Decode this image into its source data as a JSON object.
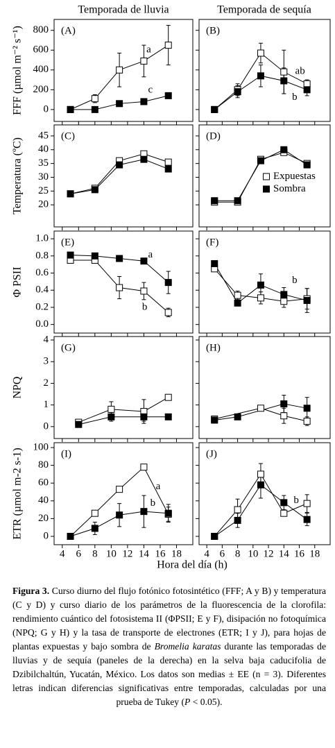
{
  "column_titles": [
    "Temporada de lluvia",
    "Temporada de sequía"
  ],
  "xlabel": "Hora del día (h)",
  "chart_data": [
    {
      "type": "line",
      "title": "(A)",
      "ylabel": "FFF (µmol m⁻² s⁻¹)",
      "xlim": [
        3,
        20
      ],
      "xticks": [
        4,
        6,
        8,
        10,
        12,
        14,
        16,
        18
      ],
      "ylim": [
        -120,
        910
      ],
      "yticks": [
        0,
        200,
        400,
        600,
        800
      ],
      "show_ytick_labels": true,
      "show_xtick_labels": false,
      "legend": false,
      "series": [
        {
          "name": "Expuestas",
          "color": "#000000",
          "marker": "open-square",
          "x": [
            5,
            8,
            11,
            14,
            17
          ],
          "values": [
            0,
            110,
            400,
            490,
            650
          ],
          "errors": [
            0,
            40,
            170,
            160,
            200
          ]
        },
        {
          "name": "Sombra",
          "color": "#000000",
          "marker": "filled-square",
          "x": [
            5,
            8,
            11,
            14,
            17
          ],
          "values": [
            0,
            0,
            60,
            80,
            140
          ],
          "errors": [
            0,
            0,
            10,
            10,
            15
          ]
        }
      ],
      "annotations": [
        {
          "text": "a",
          "x": 14.6,
          "y": 602
        },
        {
          "text": "c",
          "x": 14.8,
          "y": 195
        }
      ]
    },
    {
      "type": "line",
      "title": "(B)",
      "xlim": [
        3,
        20
      ],
      "xticks": [
        4,
        6,
        8,
        10,
        12,
        14,
        16,
        18
      ],
      "ylim": [
        -120,
        910
      ],
      "yticks": [
        0,
        200,
        400,
        600,
        800
      ],
      "show_ytick_labels": false,
      "show_xtick_labels": false,
      "legend": false,
      "series": [
        {
          "name": "Expuestas",
          "color": "#000000",
          "marker": "open-square",
          "x": [
            5,
            8,
            11,
            14,
            17
          ],
          "values": [
            0,
            200,
            570,
            380,
            260
          ],
          "errors": [
            0,
            60,
            100,
            220,
            40
          ]
        },
        {
          "name": "Sombra",
          "color": "#000000",
          "marker": "filled-square",
          "x": [
            5,
            8,
            11,
            14,
            17
          ],
          "values": [
            0,
            180,
            340,
            290,
            200
          ],
          "errors": [
            0,
            60,
            110,
            130,
            60
          ]
        }
      ],
      "annotations": [
        {
          "text": "ab",
          "x": 16.1,
          "y": 385
        },
        {
          "text": "b",
          "x": 15.4,
          "y": 120
        }
      ]
    },
    {
      "type": "line",
      "title": "(C)",
      "ylabel": "Temperatura (ºC)",
      "xlim": [
        3,
        20
      ],
      "xticks": [
        4,
        6,
        8,
        10,
        12,
        14,
        16,
        18
      ],
      "ylim": [
        12,
        49
      ],
      "yticks": [
        20,
        25,
        30,
        35,
        40,
        45
      ],
      "show_ytick_labels": true,
      "show_xtick_labels": false,
      "legend": false,
      "series": [
        {
          "name": "Expuestas",
          "color": "#000000",
          "marker": "open-square",
          "x": [
            5,
            8,
            11,
            14,
            17
          ],
          "values": [
            24,
            26,
            36,
            38.5,
            35.5
          ],
          "errors": [
            0.3,
            0.3,
            0.5,
            0.5,
            0.5
          ]
        },
        {
          "name": "Sombra",
          "color": "#000000",
          "marker": "filled-square",
          "x": [
            5,
            8,
            11,
            14,
            17
          ],
          "values": [
            24,
            25.5,
            34.5,
            36.5,
            33
          ],
          "errors": [
            0.3,
            0.3,
            0.5,
            0.5,
            0.5
          ]
        }
      ],
      "annotations": []
    },
    {
      "type": "line",
      "title": "(D)",
      "xlim": [
        3,
        20
      ],
      "xticks": [
        4,
        6,
        8,
        10,
        12,
        14,
        16,
        18
      ],
      "ylim": [
        12,
        49
      ],
      "yticks": [
        20,
        25,
        30,
        35,
        40,
        45
      ],
      "show_ytick_labels": false,
      "show_xtick_labels": false,
      "legend": "center right",
      "series": [
        {
          "name": "Expuestas",
          "color": "#000000",
          "marker": "open-square",
          "x": [
            5,
            8,
            11,
            14,
            17
          ],
          "values": [
            21,
            21,
            36.5,
            39,
            35
          ],
          "errors": [
            0.3,
            0.3,
            0.5,
            0.5,
            0.5
          ]
        },
        {
          "name": "Sombra",
          "color": "#000000",
          "marker": "filled-square",
          "x": [
            5,
            8,
            11,
            14,
            17
          ],
          "values": [
            21.5,
            21.5,
            36,
            40,
            34.5
          ],
          "errors": [
            0.3,
            0.3,
            0.5,
            0.5,
            0.5
          ]
        }
      ],
      "annotations": []
    },
    {
      "type": "line",
      "title": "(E)",
      "ylabel": "Φ PSII",
      "xlim": [
        3,
        20
      ],
      "xticks": [
        4,
        6,
        8,
        10,
        12,
        14,
        16,
        18
      ],
      "ylim": [
        -0.1,
        1.09
      ],
      "yticks": [
        {
          "value": 0,
          "label": "0.0"
        },
        0.2,
        0.4,
        0.6,
        0.8,
        {
          "value": 1,
          "label": "1.0"
        }
      ],
      "show_ytick_labels": true,
      "show_xtick_labels": false,
      "legend": false,
      "series": [
        {
          "name": "Expuestas",
          "color": "#000000",
          "marker": "open-square",
          "x": [
            5,
            8,
            11,
            14,
            17
          ],
          "values": [
            0.75,
            0.75,
            0.43,
            0.39,
            0.14
          ],
          "errors": [
            0.03,
            0.03,
            0.13,
            0.1,
            0.05
          ]
        },
        {
          "name": "Sombra",
          "color": "#000000",
          "marker": "filled-square",
          "x": [
            5,
            8,
            11,
            14,
            17
          ],
          "values": [
            0.81,
            0.8,
            0.77,
            0.74,
            0.49
          ],
          "errors": [
            0.03,
            0.03,
            0.02,
            0.03,
            0.13
          ]
        }
      ],
      "annotations": [
        {
          "text": "a",
          "x": 14.8,
          "y": 0.81
        },
        {
          "text": "b",
          "x": 14.1,
          "y": 0.2
        }
      ]
    },
    {
      "type": "line",
      "title": "(F)",
      "xlim": [
        3,
        20
      ],
      "xticks": [
        4,
        6,
        8,
        10,
        12,
        14,
        16,
        18
      ],
      "ylim": [
        -0.1,
        1.09
      ],
      "yticks": [
        0,
        0.2,
        0.4,
        0.6,
        0.8,
        1
      ],
      "show_ytick_labels": false,
      "show_xtick_labels": false,
      "legend": false,
      "series": [
        {
          "name": "Expuestas",
          "color": "#000000",
          "marker": "open-square",
          "x": [
            5,
            8,
            11,
            14,
            17
          ],
          "values": [
            0.65,
            0.34,
            0.31,
            0.27,
            0.3
          ],
          "errors": [
            0.03,
            0.05,
            0.07,
            0.07,
            0.12
          ]
        },
        {
          "name": "Sombra",
          "color": "#000000",
          "marker": "filled-square",
          "x": [
            5,
            8,
            11,
            14,
            17
          ],
          "values": [
            0.71,
            0.25,
            0.46,
            0.35,
            0.28
          ],
          "errors": [
            0.03,
            0.03,
            0.13,
            0.08,
            0.14
          ]
        }
      ],
      "annotations": [
        {
          "text": "b",
          "x": 15.4,
          "y": 0.51
        }
      ]
    },
    {
      "type": "line",
      "title": "(G)",
      "ylabel": "NPQ",
      "xlim": [
        3,
        20
      ],
      "xticks": [
        4,
        6,
        8,
        10,
        12,
        14,
        16,
        18
      ],
      "ylim": [
        -0.55,
        4.16
      ],
      "yticks": [
        0,
        1,
        2,
        3,
        4
      ],
      "show_ytick_labels": true,
      "show_xtick_labels": false,
      "legend": false,
      "series": [
        {
          "name": "Expuestas",
          "color": "#000000",
          "marker": "open-square",
          "x": [
            6,
            10,
            14,
            17
          ],
          "values": [
            0.2,
            0.8,
            0.7,
            1.35
          ],
          "errors": [
            0.05,
            0.35,
            0.55,
            0.1
          ]
        },
        {
          "name": "Sombra",
          "color": "#000000",
          "marker": "filled-square",
          "x": [
            6,
            10,
            14,
            17
          ],
          "values": [
            0.1,
            0.45,
            0.45,
            0.45
          ],
          "errors": [
            0.05,
            0.2,
            0.2,
            0.08
          ]
        }
      ],
      "annotations": []
    },
    {
      "type": "line",
      "title": "(H)",
      "xlim": [
        3,
        20
      ],
      "xticks": [
        4,
        6,
        8,
        10,
        12,
        14,
        16,
        18
      ],
      "ylim": [
        -0.55,
        4.16
      ],
      "yticks": [
        0,
        1,
        2,
        3,
        4
      ],
      "show_ytick_labels": false,
      "show_xtick_labels": false,
      "legend": false,
      "series": [
        {
          "name": "Expuestas",
          "color": "#000000",
          "marker": "open-square",
          "x": [
            5,
            11,
            14,
            17
          ],
          "values": [
            0.35,
            0.85,
            0.5,
            0.25
          ],
          "errors": [
            0.05,
            0.1,
            0.35,
            0.2
          ]
        },
        {
          "name": "Sombra",
          "color": "#000000",
          "marker": "filled-square",
          "x": [
            5,
            8,
            14,
            17
          ],
          "values": [
            0.3,
            0.45,
            1.05,
            0.85
          ],
          "errors": [
            0.05,
            0.1,
            0.4,
            0.5
          ]
        }
      ],
      "annotations": []
    },
    {
      "type": "line",
      "title": "(I)",
      "ylabel": "ETR (µmol m-2 s-1)",
      "xlim": [
        3,
        20
      ],
      "xticks": [
        4,
        6,
        8,
        10,
        12,
        14,
        16,
        18
      ],
      "ylim": [
        -9.4,
        105.5
      ],
      "yticks": [
        0,
        20,
        40,
        60,
        80,
        100
      ],
      "show_ytick_labels": true,
      "show_xtick_labels": true,
      "legend": false,
      "series": [
        {
          "name": "Expuestas",
          "color": "#000000",
          "marker": "open-square",
          "x": [
            5,
            8,
            11,
            14,
            17
          ],
          "values": [
            0,
            26,
            53,
            78,
            25
          ],
          "errors": [
            0,
            3,
            3,
            2,
            8
          ]
        },
        {
          "name": "Sombra",
          "color": "#000000",
          "marker": "filled-square",
          "x": [
            5,
            8,
            11,
            14,
            17
          ],
          "values": [
            0,
            9,
            24,
            28,
            26
          ],
          "errors": [
            1,
            7,
            13,
            18,
            10
          ]
        }
      ],
      "annotations": [
        {
          "text": "a",
          "x": 15.75,
          "y": 56
        },
        {
          "text": "b",
          "x": 15.1,
          "y": 37
        }
      ]
    },
    {
      "type": "line",
      "title": "(J)",
      "xlim": [
        3,
        20
      ],
      "xticks": [
        4,
        6,
        8,
        10,
        12,
        14,
        16,
        18
      ],
      "ylim": [
        -9.4,
        105.5
      ],
      "yticks": [
        0,
        20,
        40,
        60,
        80,
        100
      ],
      "show_ytick_labels": false,
      "show_xtick_labels": true,
      "legend": false,
      "series": [
        {
          "name": "Expuestas",
          "color": "#000000",
          "marker": "open-square",
          "x": [
            5,
            8,
            11,
            14,
            17
          ],
          "values": [
            0,
            30,
            70,
            26,
            37
          ],
          "errors": [
            0,
            12,
            12,
            3,
            10
          ]
        },
        {
          "name": "Sombra",
          "color": "#000000",
          "marker": "filled-square",
          "x": [
            5,
            8,
            11,
            14,
            17
          ],
          "values": [
            0,
            18,
            58,
            38,
            19
          ],
          "errors": [
            0,
            8,
            15,
            8,
            7
          ]
        }
      ],
      "annotations": [
        {
          "text": "b",
          "x": 15.6,
          "y": 40
        }
      ]
    }
  ],
  "caption": [
    {
      "text": "Figura 3.",
      "style": "bold"
    },
    {
      "text": " Curso diurno del flujo fotónico fotosintético (FFF; A y B) y temperatura (C y D) y curso diario de los parámetros de la fluorescencia de la clorofila: rendimiento cuántico del fotosistema II (ΦPSII; E y F), disipación no fotoquímica (NPQ; G y H) y la tasa de transporte de electrones (ETR; I y J), para hojas de plantas expuestas y bajo sombra de ",
      "style": "normal"
    },
    {
      "text": "Bromelia karatas",
      "style": "italic"
    },
    {
      "text": " durante las temporadas de lluvias y de sequía (paneles de la derecha) en la selva baja caducifolia de Dzibilchaltún, Yucatán, México. Los datos son medias ± EE (n = 3). Diferentes letras indican diferencias significativas entre temporadas, calculadas por una prueba de Tukey (",
      "style": "normal"
    },
    {
      "text": "P",
      "style": "italic"
    },
    {
      "text": " < 0.05).",
      "style": "normal"
    }
  ]
}
